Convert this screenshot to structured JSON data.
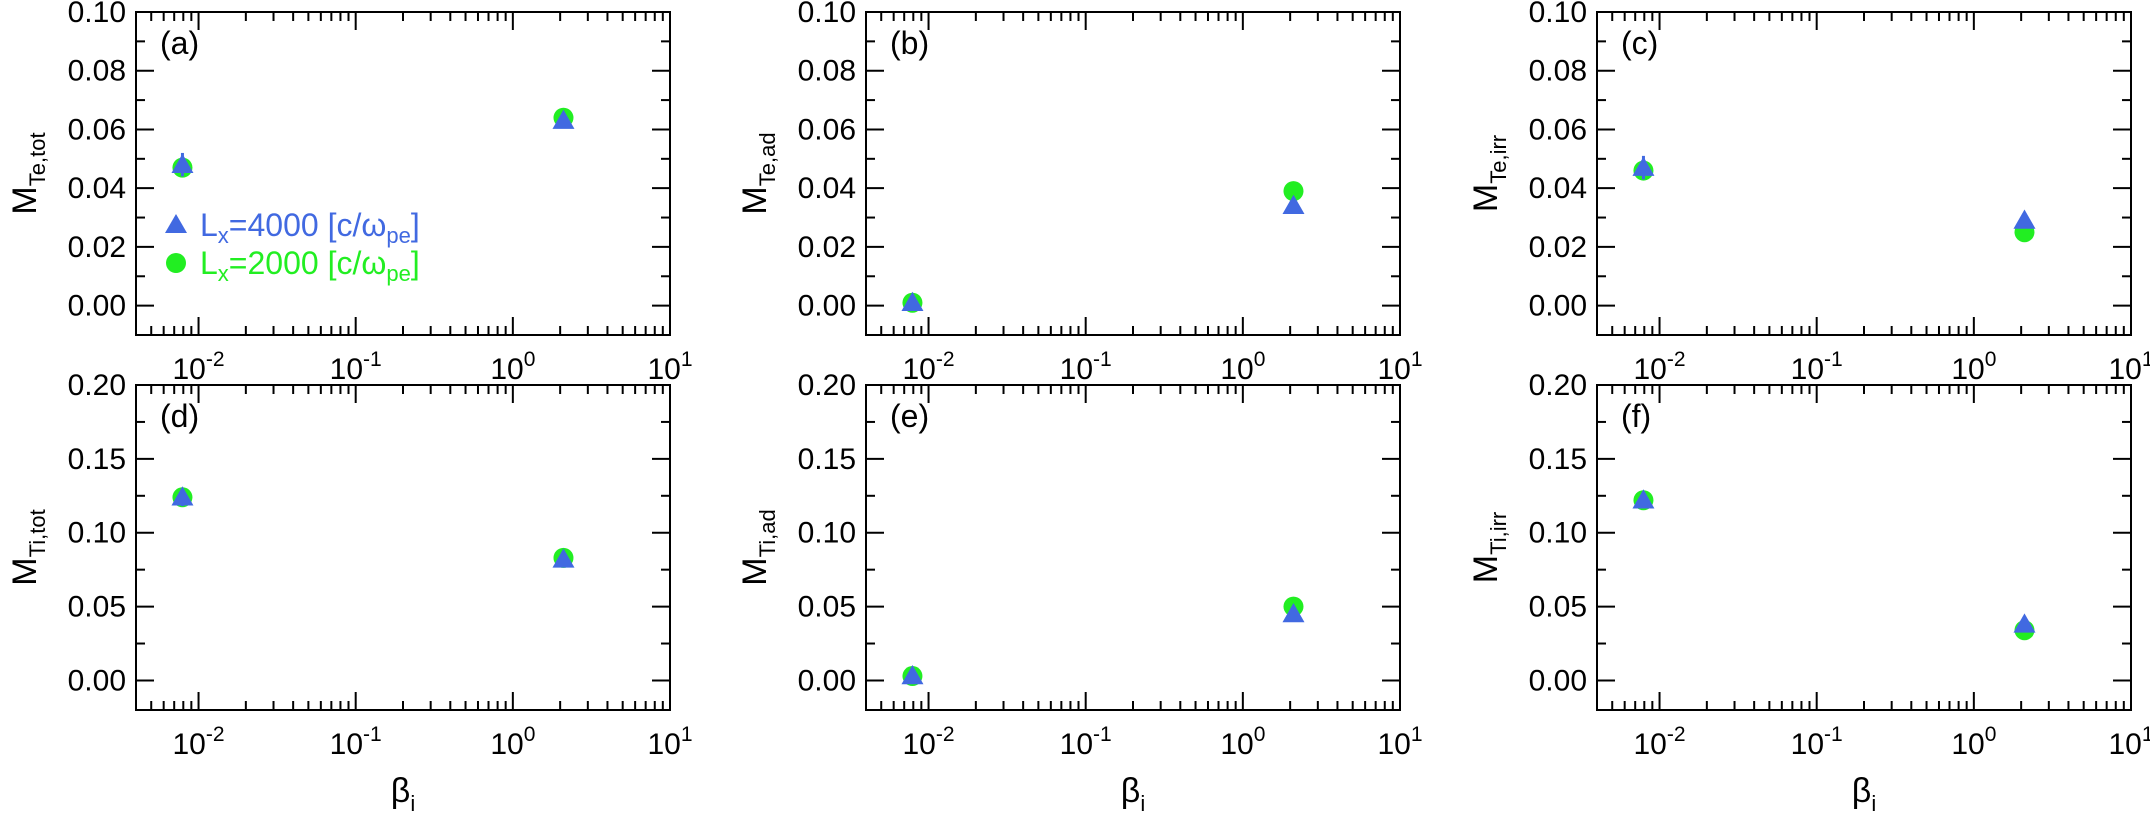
{
  "colors": {
    "lx4000": "#4169e1",
    "lx2000": "#22ee22",
    "axis": "#000000"
  },
  "legend": [
    {
      "series": "lx4000",
      "marker": "triangle",
      "prefix": "L",
      "sub": "x",
      "mid": "=4000 [c/ω",
      "sub2": "pe",
      "suffix": "]"
    },
    {
      "series": "lx2000",
      "marker": "circle",
      "prefix": "L",
      "sub": "x",
      "mid": "=2000 [c/ω",
      "sub2": "pe",
      "suffix": "]"
    }
  ],
  "chart_data": [
    {
      "type": "scatter",
      "panel": "(a)",
      "ylabel": {
        "main": "M",
        "sub": "Te,tot"
      },
      "xscale": "log",
      "xlim": [
        0.004,
        10
      ],
      "ylim": [
        -0.01,
        0.1
      ],
      "yticks": [
        "0.00",
        "0.02",
        "0.04",
        "0.06",
        "0.08",
        "0.10"
      ],
      "ytick_values": [
        0,
        0.02,
        0.04,
        0.06,
        0.08,
        0.1
      ],
      "xticks": [
        {
          "base": "10",
          "exp": "-2",
          "value": 0.01
        },
        {
          "base": "10",
          "exp": "-1",
          "value": 0.1
        },
        {
          "base": "10",
          "exp": "0",
          "value": 1
        },
        {
          "base": "10",
          "exp": "1",
          "value": 10
        }
      ],
      "show_xlabel": false,
      "legend": true,
      "series": [
        {
          "key": "lx4000",
          "marker": "triangle",
          "x": [
            0.0079,
            2.1
          ],
          "y": [
            0.048,
            0.063
          ],
          "err": [
            0.004,
            0.0
          ]
        },
        {
          "key": "lx2000",
          "marker": "circle",
          "x": [
            0.0079,
            2.1
          ],
          "y": [
            0.047,
            0.064
          ],
          "err": [
            0.002,
            0.0
          ]
        }
      ]
    },
    {
      "type": "scatter",
      "panel": "(b)",
      "ylabel": {
        "main": "M",
        "sub": "Te,ad"
      },
      "xscale": "log",
      "xlim": [
        0.004,
        10
      ],
      "ylim": [
        -0.01,
        0.1
      ],
      "yticks": [
        "0.00",
        "0.02",
        "0.04",
        "0.06",
        "0.08",
        "0.10"
      ],
      "ytick_values": [
        0,
        0.02,
        0.04,
        0.06,
        0.08,
        0.1
      ],
      "xticks": [
        {
          "base": "10",
          "exp": "-2",
          "value": 0.01
        },
        {
          "base": "10",
          "exp": "-1",
          "value": 0.1
        },
        {
          "base": "10",
          "exp": "0",
          "value": 1
        },
        {
          "base": "10",
          "exp": "1",
          "value": 10
        }
      ],
      "show_xlabel": false,
      "legend": false,
      "series": [
        {
          "key": "lx4000",
          "marker": "triangle",
          "x": [
            0.0079,
            2.1
          ],
          "y": [
            0.001,
            0.034
          ],
          "err": [
            0,
            0
          ]
        },
        {
          "key": "lx2000",
          "marker": "circle",
          "x": [
            0.0079,
            2.1
          ],
          "y": [
            0.001,
            0.039
          ],
          "err": [
            0,
            0
          ]
        }
      ]
    },
    {
      "type": "scatter",
      "panel": "(c)",
      "ylabel": {
        "main": "M",
        "sub": "Te,irr"
      },
      "xscale": "log",
      "xlim": [
        0.004,
        10
      ],
      "ylim": [
        -0.01,
        0.1
      ],
      "yticks": [
        "0.00",
        "0.02",
        "0.04",
        "0.06",
        "0.08",
        "0.10"
      ],
      "ytick_values": [
        0,
        0.02,
        0.04,
        0.06,
        0.08,
        0.1
      ],
      "xticks": [
        {
          "base": "10",
          "exp": "-2",
          "value": 0.01
        },
        {
          "base": "10",
          "exp": "-1",
          "value": 0.1
        },
        {
          "base": "10",
          "exp": "0",
          "value": 1
        },
        {
          "base": "10",
          "exp": "1",
          "value": 10
        }
      ],
      "show_xlabel": false,
      "legend": false,
      "series": [
        {
          "key": "lx4000",
          "marker": "triangle",
          "x": [
            0.0079,
            2.1
          ],
          "y": [
            0.047,
            0.029
          ],
          "err": [
            0.004,
            0
          ]
        },
        {
          "key": "lx2000",
          "marker": "circle",
          "x": [
            0.0079,
            2.1
          ],
          "y": [
            0.046,
            0.025
          ],
          "err": [
            0.002,
            0
          ]
        }
      ]
    },
    {
      "type": "scatter",
      "panel": "(d)",
      "ylabel": {
        "main": "M",
        "sub": "Ti,tot"
      },
      "xscale": "log",
      "xlim": [
        0.004,
        10
      ],
      "ylim": [
        -0.02,
        0.2
      ],
      "yticks": [
        "0.00",
        "0.05",
        "0.10",
        "0.15",
        "0.20"
      ],
      "ytick_values": [
        0,
        0.05,
        0.1,
        0.15,
        0.2
      ],
      "xticks": [
        {
          "base": "10",
          "exp": "-2",
          "value": 0.01
        },
        {
          "base": "10",
          "exp": "-1",
          "value": 0.1
        },
        {
          "base": "10",
          "exp": "0",
          "value": 1
        },
        {
          "base": "10",
          "exp": "1",
          "value": 10
        }
      ],
      "show_xlabel": true,
      "legend": false,
      "series": [
        {
          "key": "lx4000",
          "marker": "triangle",
          "x": [
            0.0079,
            2.1
          ],
          "y": [
            0.124,
            0.082
          ],
          "err": [
            0.006,
            0
          ]
        },
        {
          "key": "lx2000",
          "marker": "circle",
          "x": [
            0.0079,
            2.1
          ],
          "y": [
            0.124,
            0.083
          ],
          "err": [
            0.004,
            0
          ]
        }
      ]
    },
    {
      "type": "scatter",
      "panel": "(e)",
      "ylabel": {
        "main": "M",
        "sub": "Ti,ad"
      },
      "xscale": "log",
      "xlim": [
        0.004,
        10
      ],
      "ylim": [
        -0.02,
        0.2
      ],
      "yticks": [
        "0.00",
        "0.05",
        "0.10",
        "0.15",
        "0.20"
      ],
      "ytick_values": [
        0,
        0.05,
        0.1,
        0.15,
        0.2
      ],
      "xticks": [
        {
          "base": "10",
          "exp": "-2",
          "value": 0.01
        },
        {
          "base": "10",
          "exp": "-1",
          "value": 0.1
        },
        {
          "base": "10",
          "exp": "0",
          "value": 1
        },
        {
          "base": "10",
          "exp": "1",
          "value": 10
        }
      ],
      "show_xlabel": true,
      "legend": false,
      "series": [
        {
          "key": "lx4000",
          "marker": "triangle",
          "x": [
            0.0079,
            2.1
          ],
          "y": [
            0.003,
            0.045
          ],
          "err": [
            0,
            0
          ]
        },
        {
          "key": "lx2000",
          "marker": "circle",
          "x": [
            0.0079,
            2.1
          ],
          "y": [
            0.003,
            0.05
          ],
          "err": [
            0,
            0
          ]
        }
      ]
    },
    {
      "type": "scatter",
      "panel": "(f)",
      "ylabel": {
        "main": "M",
        "sub": "Ti,irr"
      },
      "xscale": "log",
      "xlim": [
        0.004,
        10
      ],
      "ylim": [
        -0.02,
        0.2
      ],
      "yticks": [
        "0.00",
        "0.05",
        "0.10",
        "0.15",
        "0.20"
      ],
      "ytick_values": [
        0,
        0.05,
        0.1,
        0.15,
        0.2
      ],
      "xticks": [
        {
          "base": "10",
          "exp": "-2",
          "value": 0.01
        },
        {
          "base": "10",
          "exp": "-1",
          "value": 0.1
        },
        {
          "base": "10",
          "exp": "0",
          "value": 1
        },
        {
          "base": "10",
          "exp": "1",
          "value": 10
        }
      ],
      "show_xlabel": true,
      "legend": false,
      "series": [
        {
          "key": "lx4000",
          "marker": "triangle",
          "x": [
            0.0079,
            2.1
          ],
          "y": [
            0.122,
            0.038
          ],
          "err": [
            0.005,
            0
          ]
        },
        {
          "key": "lx2000",
          "marker": "circle",
          "x": [
            0.0079,
            2.1
          ],
          "y": [
            0.122,
            0.034
          ],
          "err": [
            0.003,
            0
          ]
        }
      ]
    }
  ],
  "xlabel": {
    "main": "β",
    "sub": "i"
  }
}
